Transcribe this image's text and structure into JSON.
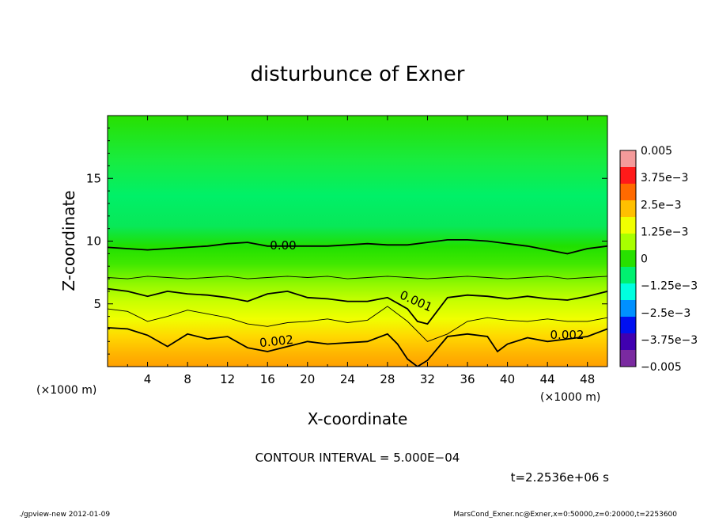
{
  "chart_data": {
    "type": "heatmap",
    "title": "disturbunce of Exner",
    "xlabel": "X-coordinate",
    "ylabel": "Z-coordinate",
    "x_unit_left": "(×1000 m)",
    "x_unit_right": "(×1000 m)",
    "xlim": [
      0,
      50
    ],
    "ylim": [
      0,
      20
    ],
    "x_ticks": [
      "4",
      "8",
      "12",
      "16",
      "20",
      "24",
      "28",
      "32",
      "36",
      "40",
      "44",
      "48"
    ],
    "x_tick_values": [
      4,
      8,
      12,
      16,
      20,
      24,
      28,
      32,
      36,
      40,
      44,
      48
    ],
    "y_ticks": [
      "5",
      "10",
      "15"
    ],
    "y_tick_values": [
      5,
      10,
      15
    ],
    "colorbar": {
      "labels": [
        "0.005",
        "3.75e−3",
        "2.5e−3",
        "1.25e−3",
        "0",
        "−1.25e−3",
        "−2.5e−3",
        "−3.75e−3",
        "−0.005"
      ],
      "range": [
        -0.005,
        0.005
      ],
      "colors": [
        "#f49a9a",
        "#ff1a1a",
        "#ff6a00",
        "#ffc000",
        "#f0ff00",
        "#a8ff00",
        "#28e000",
        "#00f070",
        "#00ffe0",
        "#0090ff",
        "#0010f0",
        "#4000b0",
        "#7a2aa0"
      ]
    },
    "contour_interval_text": "CONTOUR INTERVAL = 5.000E−04",
    "contour_labels": [
      "0.00",
      "0.001",
      "0.002",
      "0.002"
    ],
    "contours": [
      {
        "level": 0.0,
        "x": [
          0,
          2,
          4,
          6,
          8,
          10,
          12,
          14,
          16,
          18,
          20,
          22,
          24,
          26,
          28,
          30,
          32,
          34,
          36,
          38,
          40,
          42,
          44,
          46,
          48,
          50
        ],
        "z": [
          9.5,
          9.4,
          9.3,
          9.4,
          9.5,
          9.6,
          9.8,
          9.9,
          9.6,
          9.6,
          9.6,
          9.6,
          9.7,
          9.8,
          9.7,
          9.7,
          9.9,
          10.1,
          10.1,
          10.0,
          9.8,
          9.6,
          9.3,
          9.0,
          9.4,
          9.6
        ]
      },
      {
        "level": 0.0005,
        "x": [
          0,
          2,
          4,
          6,
          8,
          10,
          12,
          14,
          16,
          18,
          20,
          22,
          24,
          26,
          28,
          30,
          32,
          34,
          36,
          38,
          40,
          42,
          44,
          46,
          48,
          50
        ],
        "z": [
          7.1,
          7.0,
          7.2,
          7.1,
          7.0,
          7.1,
          7.2,
          7.0,
          7.1,
          7.2,
          7.1,
          7.2,
          7.0,
          7.1,
          7.2,
          7.1,
          7.0,
          7.1,
          7.2,
          7.1,
          7.0,
          7.1,
          7.2,
          7.0,
          7.1,
          7.2
        ]
      },
      {
        "level": 0.001,
        "x": [
          0,
          2,
          4,
          6,
          8,
          10,
          12,
          14,
          16,
          18,
          20,
          22,
          24,
          26,
          28,
          30,
          31,
          32,
          34,
          36,
          38,
          40,
          42,
          44,
          46,
          48,
          50
        ],
        "z": [
          6.2,
          6.0,
          5.6,
          6.0,
          5.8,
          5.7,
          5.5,
          5.2,
          5.8,
          6.0,
          5.5,
          5.4,
          5.2,
          5.2,
          5.5,
          4.6,
          3.6,
          3.4,
          5.5,
          5.7,
          5.6,
          5.4,
          5.6,
          5.4,
          5.3,
          5.6,
          6.0
        ]
      },
      {
        "level": 0.0015,
        "x": [
          0,
          2,
          4,
          6,
          8,
          10,
          12,
          14,
          16,
          18,
          20,
          22,
          24,
          26,
          28,
          30,
          32,
          34,
          36,
          38,
          40,
          42,
          44,
          46,
          48,
          50
        ],
        "z": [
          4.6,
          4.4,
          3.6,
          4.0,
          4.5,
          4.2,
          3.9,
          3.4,
          3.2,
          3.5,
          3.6,
          3.8,
          3.5,
          3.7,
          4.8,
          3.6,
          2.0,
          2.6,
          3.6,
          3.9,
          3.7,
          3.6,
          3.8,
          3.6,
          3.6,
          3.9
        ]
      },
      {
        "level": 0.002,
        "x": [
          0,
          2,
          4,
          6,
          8,
          10,
          12,
          14,
          16,
          18,
          20,
          22,
          24,
          26,
          28,
          29,
          30,
          31,
          32,
          34,
          36,
          38,
          39,
          40,
          42,
          44,
          46,
          48,
          50
        ],
        "z": [
          3.1,
          3.0,
          2.5,
          1.6,
          2.6,
          2.2,
          2.4,
          1.5,
          1.2,
          1.6,
          2.0,
          1.8,
          1.9,
          2.0,
          2.6,
          1.8,
          0.6,
          0.0,
          0.5,
          2.4,
          2.6,
          2.4,
          1.2,
          1.8,
          2.3,
          2.0,
          2.2,
          2.4,
          3.0
        ]
      }
    ],
    "time_label": "t=2.2536e+06 s"
  },
  "footer": {
    "left": "./gpview-new   2012-01-09",
    "right": "MarsCond_Exner.nc@Exner,x=0:50000,z=0:20000,t=2253600"
  }
}
